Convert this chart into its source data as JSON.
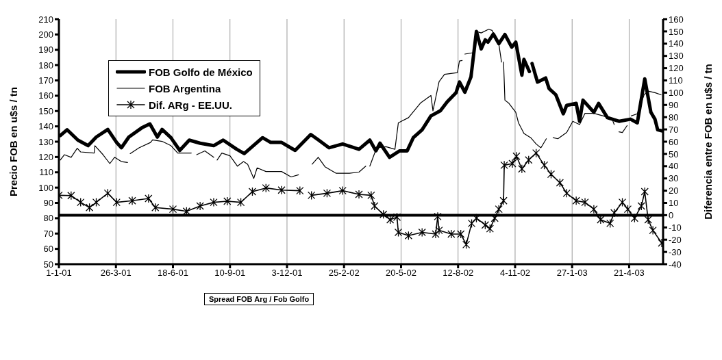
{
  "chart_data": {
    "type": "line",
    "ylabel": "Precio FOB en u$s / tn",
    "y2label": "Diferencia entre FOB en u$s / tn",
    "xlim": [
      "2001-01-01",
      "2003-06-10"
    ],
    "xticks": [
      {
        "value": "2001-01-01",
        "label": "1-1-01"
      },
      {
        "value": "2001-03-26",
        "label": "26-3-01"
      },
      {
        "value": "2001-06-18",
        "label": "18-6-01"
      },
      {
        "value": "2001-09-10",
        "label": "10-9-01"
      },
      {
        "value": "2001-12-03",
        "label": "3-12-01"
      },
      {
        "value": "2002-02-25",
        "label": "25-2-02"
      },
      {
        "value": "2002-05-20",
        "label": "20-5-02"
      },
      {
        "value": "2002-08-12",
        "label": "12-8-02"
      },
      {
        "value": "2002-11-04",
        "label": "4-11-02"
      },
      {
        "value": "2003-01-27",
        "label": "27-1-03"
      },
      {
        "value": "2003-04-21",
        "label": "21-4-03"
      }
    ],
    "ylim": [
      50,
      210
    ],
    "yticks": [
      50,
      60,
      70,
      80,
      90,
      100,
      110,
      120,
      130,
      140,
      150,
      160,
      170,
      180,
      190,
      200,
      210
    ],
    "y2lim": [
      -40,
      160
    ],
    "y2ticks": [
      -40,
      -30,
      -20,
      -10,
      0,
      10,
      20,
      30,
      40,
      50,
      60,
      70,
      80,
      90,
      100,
      110,
      120,
      130,
      140,
      150,
      160
    ],
    "grid": "x",
    "legend": "top left",
    "line_style": "solid",
    "ref_lines": [
      {
        "axis": "y2",
        "value": 0,
        "color": "#000000"
      }
    ],
    "annotations": [
      "Spread FOB Arg / Fob Golfo"
    ],
    "series": [
      {
        "name": "FOB Golfo de México",
        "color": "#000000",
        "marker": "none",
        "x": [
          "2001-01-03",
          "2001-01-13",
          "2001-01-29",
          "2001-02-13",
          "2001-02-25",
          "2001-03-14",
          "2001-03-27",
          "2001-04-03",
          "2001-04-14",
          "2001-05-03",
          "2001-05-15",
          "2001-05-26",
          "2001-06-02",
          "2001-06-15",
          "2001-06-28",
          "2001-07-12",
          "2001-07-28",
          "2001-08-17",
          "2001-08-31",
          "2001-09-20",
          "2001-10-01",
          "2001-10-28",
          "2001-11-09",
          "2001-11-25",
          "2001-12-15",
          "2002-01-07",
          "2002-01-18",
          "2002-02-03",
          "2002-02-23",
          "2002-03-19",
          "2002-04-04",
          "2002-04-13",
          "2002-04-19",
          "2002-05-03",
          "2002-05-18",
          "2002-05-29",
          "2002-06-07",
          "2002-06-20",
          "2002-07-03",
          "2002-07-17",
          "2002-07-27",
          "2002-08-09",
          "2002-08-14",
          "2002-08-22",
          "2002-08-31",
          "2002-09-08",
          "2002-09-15",
          "2002-09-21",
          "2002-09-25",
          "2002-10-03",
          "2002-10-11",
          "2002-10-20",
          "2002-10-30",
          "2002-11-05",
          "2002-11-14",
          "2002-11-17",
          "2002-11-25",
          "2002-11-27",
          "2002-11-29",
          "2002-12-07",
          "2002-12-19",
          "2002-12-24",
          "2003-01-03",
          "2003-01-14",
          "2003-01-19",
          "2003-02-02",
          "2003-02-07",
          "2003-02-12",
          "2003-02-28",
          "2003-03-07",
          "2003-03-20",
          "2003-04-06",
          "2003-04-23",
          "2003-05-03",
          "2003-05-14",
          "2003-05-23",
          "2003-05-29",
          "2003-06-02",
          "2003-06-08"
        ],
        "values": [
          134,
          137.8,
          131,
          127.4,
          133,
          138,
          129.5,
          126,
          133,
          139,
          141.6,
          133,
          138,
          132.6,
          124.3,
          131,
          129,
          127.4,
          131,
          125,
          122.2,
          132.6,
          129.5,
          129.5,
          124.3,
          134.7,
          131.2,
          126,
          128.5,
          125,
          131,
          124,
          129,
          119.8,
          124,
          124,
          132.6,
          137.8,
          146.8,
          150.2,
          156,
          162,
          169,
          162.3,
          172.3,
          202,
          190.6,
          196.5,
          195,
          200.3,
          194,
          200,
          191.7,
          195,
          173.4,
          183.7,
          175.8,
          null,
          181,
          168.9,
          171.6,
          164.7,
          160.6,
          148.2,
          153.7,
          155,
          143.3,
          157.1,
          149.2,
          155,
          145.7,
          143.3,
          144.7,
          142.3,
          171,
          149.2,
          144.7,
          137.8,
          137.1
        ]
      },
      {
        "name": "FOB Argentina",
        "color": "#000000",
        "marker": "none",
        "x": [
          "2001-01-03",
          "2001-01-09",
          "2001-01-19",
          "2001-01-28",
          "2001-02-02",
          "2001-02-22",
          "2001-02-23",
          "2001-03-07",
          "2001-03-17",
          "2001-03-24",
          "2001-04-03",
          "2001-04-12",
          "2001-04-14",
          "2001-04-16",
          "2001-04-29",
          "2001-05-16",
          "2001-05-19",
          "2001-06-02",
          "2001-06-15",
          "2001-06-25",
          "2001-07-15",
          "2001-07-18",
          "2001-07-23",
          "2001-08-04",
          "2001-08-17",
          "2001-08-19",
          "2001-08-22",
          "2001-08-29",
          "2001-09-10",
          "2001-09-21",
          "2001-09-30",
          "2001-10-06",
          "2001-10-15",
          "2001-10-20",
          "2001-11-02",
          "2001-11-25",
          "2001-12-09",
          "2001-12-20",
          "2001-12-27",
          "2002-01-09",
          "2002-01-18",
          "2002-01-28",
          "2002-02-13",
          "2002-03-05",
          "2002-03-19",
          "2002-03-29",
          "2002-04-01",
          "2002-04-04",
          "2002-04-14",
          "2002-04-28",
          "2002-05-11",
          "2002-05-16",
          "2002-05-31",
          "2002-06-18",
          "2002-07-03",
          "2002-07-06",
          "2002-07-15",
          "2002-07-23",
          "2002-08-11",
          "2002-08-14",
          "2002-08-18",
          "2002-08-20",
          "2002-08-22",
          "2002-09-05",
          "2002-09-08",
          "2002-09-15",
          "2002-09-26",
          "2002-10-01",
          "2002-10-11",
          "2002-10-15",
          "2002-10-17",
          "2002-10-18",
          "2002-10-20",
          "2002-10-26",
          "2002-11-05",
          "2002-11-09",
          "2002-11-17",
          "2002-11-27",
          "2002-12-05",
          "2002-12-12",
          "2002-12-20",
          "2002-12-22",
          "2002-12-30",
          "2003-01-06",
          "2003-01-19",
          "2003-01-28",
          "2003-02-07",
          "2003-02-15",
          "2003-02-28",
          "2003-03-14",
          "2003-03-27",
          "2003-03-30",
          "2003-04-01",
          "2003-04-06",
          "2003-04-11",
          "2003-04-18",
          "2003-04-20",
          "2003-04-24",
          "2003-05-03",
          "2003-05-13",
          "2003-05-19",
          "2003-05-29",
          "2003-06-07"
        ],
        "values": [
          118,
          121.5,
          119.8,
          125.7,
          123.3,
          122.6,
          127.4,
          121.5,
          115.7,
          119.8,
          117,
          116.4,
          null,
          122.2,
          126,
          129.5,
          131.2,
          130.2,
          127.4,
          122.6,
          122.6,
          null,
          121.5,
          124,
          119.8,
          null,
          118,
          122.6,
          120.8,
          114,
          117,
          115.3,
          106,
          112.9,
          110.5,
          110.5,
          107,
          108.4,
          null,
          115.3,
          119.8,
          113.6,
          109.4,
          109.4,
          110.1,
          114,
          null,
          114,
          126,
          126.7,
          125,
          142.3,
          145.7,
          155.4,
          160.2,
          150.2,
          169.2,
          174,
          175.1,
          182.7,
          183,
          null,
          187.2,
          188.2,
          202,
          201,
          203.4,
          202.7,
          194,
          182,
          null,
          182,
          157.1,
          155,
          149.2,
          142.3,
          135.4,
          132.6,
          128.5,
          126,
          131.9,
          null,
          132.6,
          131.9,
          136,
          143.3,
          141.2,
          148.5,
          148.5,
          146.8,
          144.7,
          141.2,
          null,
          136.4,
          136,
          140.5,
          null,
          146.8,
          148.2,
          160.6,
          163,
          162,
          160.6
        ]
      },
      {
        "name": "Dif. ARg - EE.UU.",
        "color": "#000000",
        "marker": "cross",
        "axis": "y2",
        "x": [
          "2001-01-01",
          "2001-01-19",
          "2001-02-02",
          "2001-02-15",
          "2001-02-25",
          "2001-03-14",
          "2001-03-27",
          "2001-04-19",
          "2001-05-13",
          "2001-05-23",
          "2001-06-18",
          "2001-07-08",
          "2001-07-28",
          "2001-08-17",
          "2001-09-06",
          "2001-09-26",
          "2001-10-13",
          "2001-11-02",
          "2001-11-25",
          "2001-12-22",
          "2001-12-29",
          "2002-01-08",
          "2002-01-31",
          "2002-02-23",
          "2002-03-19",
          "2002-04-06",
          "2002-04-11",
          "2002-04-24",
          "2002-05-04",
          "2002-05-14",
          "2002-05-16",
          "2002-05-31",
          "2002-06-20",
          "2002-07-10",
          "2002-07-13",
          "2002-07-15",
          "2002-08-02",
          "2002-08-16",
          "2002-08-24",
          "2002-09-01",
          "2002-09-08",
          "2002-09-21",
          "2002-09-28",
          "2002-10-05",
          "2002-10-11",
          "2002-10-18",
          "2002-10-19",
          "2002-10-31",
          "2002-11-06",
          "2002-11-14",
          "2002-11-24",
          "2002-12-05",
          "2002-12-17",
          "2002-12-27",
          "2003-01-09",
          "2003-01-19",
          "2003-02-02",
          "2003-02-15",
          "2003-02-28",
          "2003-03-10",
          "2003-03-24",
          "2003-03-30",
          "2003-04-11",
          "2003-04-19",
          "2003-04-29",
          "2003-05-09",
          "2003-05-14",
          "2003-05-19",
          "2003-05-26",
          "2003-06-08"
        ],
        "values": [
          16.2,
          16,
          10.5,
          6.2,
          10.5,
          17.9,
          10.5,
          11.8,
          13.6,
          6.2,
          4.9,
          3.2,
          7.5,
          10.5,
          11.4,
          10.5,
          19.2,
          22.2,
          20.5,
          20,
          null,
          16.2,
          17.9,
          20,
          17,
          16.2,
          7.5,
          0.6,
          -3.7,
          -1.6,
          -14,
          -16.7,
          -14,
          -15.4,
          -1.1,
          -12.4,
          -15.4,
          -15.4,
          -24,
          -6.7,
          -2.4,
          -8,
          -11,
          -2.4,
          4.9,
          11.8,
          40.8,
          42.1,
          48.1,
          37.8,
          45.1,
          50.7,
          40.8,
          33.4,
          26.5,
          17.9,
          11.8,
          10.5,
          4.9,
          -3.7,
          -6.7,
          1.9,
          10.5,
          4.9,
          -2.4,
          7.5,
          19.2,
          -3.7,
          -12.4,
          -22.7
        ]
      }
    ]
  }
}
